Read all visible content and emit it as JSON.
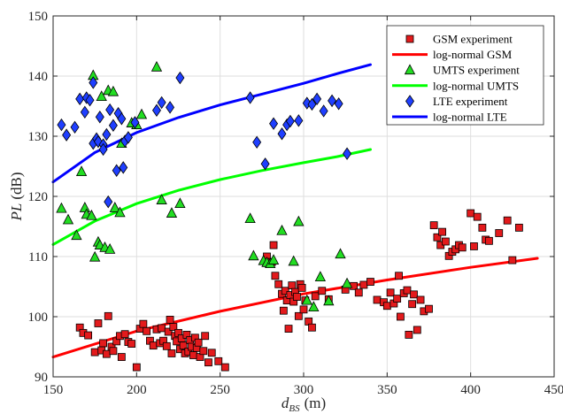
{
  "chart_data": {
    "type": "scatter",
    "title": "",
    "xlabel": {
      "main": "d",
      "sub": "BS",
      "unit": "(m)"
    },
    "ylabel": {
      "main": "PL",
      "unit": "(dB)"
    },
    "xlim": [
      150,
      450
    ],
    "ylim": [
      90,
      150
    ],
    "xticks": [
      150,
      200,
      250,
      300,
      350,
      400,
      450
    ],
    "yticks": [
      90,
      100,
      110,
      120,
      130,
      140,
      150
    ],
    "grid": true,
    "legend_position": "top-right",
    "series": [
      {
        "name": "GSM experiment",
        "kind": "scatter",
        "marker": "square",
        "color": "#e31a1c",
        "points": [
          [
            166,
            98.2
          ],
          [
            168,
            97.3
          ],
          [
            171,
            96.9
          ],
          [
            175,
            94.1
          ],
          [
            177,
            98.9
          ],
          [
            179,
            94.4
          ],
          [
            180,
            95.6
          ],
          [
            182,
            93.8
          ],
          [
            183,
            100.1
          ],
          [
            185,
            95.0
          ],
          [
            186,
            94.3
          ],
          [
            188,
            95.9
          ],
          [
            190,
            96.8
          ],
          [
            191,
            93.3
          ],
          [
            193,
            97.1
          ],
          [
            195,
            95.8
          ],
          [
            197,
            95.5
          ],
          [
            200,
            91.6
          ],
          [
            202,
            98.0
          ],
          [
            204,
            98.8
          ],
          [
            206,
            97.6
          ],
          [
            208,
            96.0
          ],
          [
            210,
            95.2
          ],
          [
            212,
            97.9
          ],
          [
            214,
            95.6
          ],
          [
            215,
            98.1
          ],
          [
            216,
            96.0
          ],
          [
            218,
            95.1
          ],
          [
            219,
            97.5
          ],
          [
            220,
            99.5
          ],
          [
            221,
            93.9
          ],
          [
            222,
            98.3
          ],
          [
            223,
            96.8
          ],
          [
            224,
            95.9
          ],
          [
            225,
            97.3
          ],
          [
            226,
            94.6
          ],
          [
            227,
            96.4
          ],
          [
            228,
            95.2
          ],
          [
            229,
            93.9
          ],
          [
            230,
            97.0
          ],
          [
            231,
            94.2
          ],
          [
            232,
            96.1
          ],
          [
            233,
            95.0
          ],
          [
            234,
            93.6
          ],
          [
            235,
            96.5
          ],
          [
            236,
            94.8
          ],
          [
            237,
            95.7
          ],
          [
            238,
            93.3
          ],
          [
            240,
            94.3
          ],
          [
            241,
            96.8
          ],
          [
            243,
            92.4
          ],
          [
            245,
            94.0
          ],
          [
            249,
            92.6
          ],
          [
            253,
            91.6
          ],
          [
            278,
            110.0
          ],
          [
            281,
            109.1
          ],
          [
            282,
            111.9
          ],
          [
            283,
            106.8
          ],
          [
            285,
            105.4
          ],
          [
            287,
            103.8
          ],
          [
            288,
            101.0
          ],
          [
            289,
            104.3
          ],
          [
            290,
            102.7
          ],
          [
            291,
            98.0
          ],
          [
            292,
            103.6
          ],
          [
            293,
            105.2
          ],
          [
            294,
            102.5
          ],
          [
            295,
            104.1
          ],
          [
            296,
            103.3
          ],
          [
            297,
            100.1
          ],
          [
            298,
            105.4
          ],
          [
            299,
            104.8
          ],
          [
            300,
            101.2
          ],
          [
            301,
            102.7
          ],
          [
            303,
            99.2
          ],
          [
            305,
            98.2
          ],
          [
            307,
            103.4
          ],
          [
            311,
            104.3
          ],
          [
            315,
            102.9
          ],
          [
            325,
            104.5
          ],
          [
            330,
            105.1
          ],
          [
            333,
            104.0
          ],
          [
            336,
            105.3
          ],
          [
            340,
            105.8
          ],
          [
            344,
            102.8
          ],
          [
            348,
            102.4
          ],
          [
            350,
            101.8
          ],
          [
            352,
            104.0
          ],
          [
            354,
            102.2
          ],
          [
            356,
            103.0
          ],
          [
            357,
            106.8
          ],
          [
            358,
            100.0
          ],
          [
            360,
            103.9
          ],
          [
            362,
            104.4
          ],
          [
            363,
            97.0
          ],
          [
            365,
            102.1
          ],
          [
            366,
            103.7
          ],
          [
            368,
            97.8
          ],
          [
            370,
            102.8
          ],
          [
            372,
            100.9
          ],
          [
            375,
            101.3
          ],
          [
            378,
            115.2
          ],
          [
            380,
            113.2
          ],
          [
            382,
            111.9
          ],
          [
            383,
            114.1
          ],
          [
            385,
            112.5
          ],
          [
            387,
            110.1
          ],
          [
            389,
            110.8
          ],
          [
            391,
            111.2
          ],
          [
            393,
            111.9
          ],
          [
            395,
            111.5
          ],
          [
            400,
            117.2
          ],
          [
            402,
            111.7
          ],
          [
            404,
            116.6
          ],
          [
            407,
            114.8
          ],
          [
            409,
            112.8
          ],
          [
            411,
            112.6
          ],
          [
            417,
            113.9
          ],
          [
            422,
            116.0
          ],
          [
            425,
            109.4
          ],
          [
            429,
            114.8
          ]
        ]
      },
      {
        "name": "log-normal GSM",
        "kind": "line",
        "color": "#ff0000",
        "points": [
          [
            150,
            93.3
          ],
          [
            200,
            97.6
          ],
          [
            250,
            100.9
          ],
          [
            300,
            103.8
          ],
          [
            350,
            106.1
          ],
          [
            400,
            108.2
          ],
          [
            440,
            109.7
          ]
        ]
      },
      {
        "name": "UMTS experiment",
        "kind": "scatter",
        "marker": "triangle",
        "color": "#22dd22",
        "points": [
          [
            155,
            118.0
          ],
          [
            159,
            116.1
          ],
          [
            164,
            113.5
          ],
          [
            167,
            124.1
          ],
          [
            169,
            118.1
          ],
          [
            170,
            117.0
          ],
          [
            173,
            116.8
          ],
          [
            174,
            140.1
          ],
          [
            175,
            109.9
          ],
          [
            177,
            112.4
          ],
          [
            178,
            111.9
          ],
          [
            179,
            136.6
          ],
          [
            181,
            111.5
          ],
          [
            183,
            137.6
          ],
          [
            184,
            111.2
          ],
          [
            186,
            137.4
          ],
          [
            187,
            118.1
          ],
          [
            190,
            117.3
          ],
          [
            191,
            128.8
          ],
          [
            197,
            132.2
          ],
          [
            200,
            131.9
          ],
          [
            203,
            133.6
          ],
          [
            212,
            141.5
          ],
          [
            215,
            119.4
          ],
          [
            221,
            117.2
          ],
          [
            226,
            118.8
          ],
          [
            268,
            116.3
          ],
          [
            270,
            110.1
          ],
          [
            276,
            109.3
          ],
          [
            278,
            109.0
          ],
          [
            280,
            108.8
          ],
          [
            282,
            109.4
          ],
          [
            287,
            114.3
          ],
          [
            294,
            109.2
          ],
          [
            297,
            115.8
          ],
          [
            302,
            102.7
          ],
          [
            306,
            101.6
          ],
          [
            310,
            106.6
          ],
          [
            315,
            102.6
          ],
          [
            322,
            110.4
          ],
          [
            326,
            105.5
          ]
        ]
      },
      {
        "name": "log-normal UMTS",
        "kind": "line",
        "color": "#00ff00",
        "points": [
          [
            150,
            112.0
          ],
          [
            175,
            115.9
          ],
          [
            200,
            118.8
          ],
          [
            225,
            121.0
          ],
          [
            250,
            122.8
          ],
          [
            275,
            124.3
          ],
          [
            300,
            125.6
          ],
          [
            320,
            126.6
          ],
          [
            340,
            127.8
          ]
        ]
      },
      {
        "name": "LTE experiment",
        "kind": "scatter",
        "marker": "diamond",
        "color": "#1f3fff",
        "points": [
          [
            155,
            131.9
          ],
          [
            158,
            130.2
          ],
          [
            163,
            131.5
          ],
          [
            166,
            136.2
          ],
          [
            169,
            134.0
          ],
          [
            170,
            136.4
          ],
          [
            172,
            136.0
          ],
          [
            174,
            138.9
          ],
          [
            174,
            128.8
          ],
          [
            176,
            129.6
          ],
          [
            177,
            129.1
          ],
          [
            178,
            133.2
          ],
          [
            180,
            128.6
          ],
          [
            180,
            127.8
          ],
          [
            182,
            130.3
          ],
          [
            183,
            119.1
          ],
          [
            184,
            134.4
          ],
          [
            186,
            131.8
          ],
          [
            188,
            124.3
          ],
          [
            189,
            133.8
          ],
          [
            191,
            132.9
          ],
          [
            192,
            124.8
          ],
          [
            193,
            129.2
          ],
          [
            195,
            129.8
          ],
          [
            199,
            132.3
          ],
          [
            212,
            134.3
          ],
          [
            215,
            135.6
          ],
          [
            220,
            134.8
          ],
          [
            226,
            139.7
          ],
          [
            268,
            136.4
          ],
          [
            272,
            129.0
          ],
          [
            277,
            125.4
          ],
          [
            282,
            132.1
          ],
          [
            287,
            130.4
          ],
          [
            290,
            131.9
          ],
          [
            292,
            132.5
          ],
          [
            297,
            132.6
          ],
          [
            302,
            135.5
          ],
          [
            305,
            135.3
          ],
          [
            308,
            136.2
          ],
          [
            312,
            134.2
          ],
          [
            317,
            135.9
          ],
          [
            321,
            135.4
          ],
          [
            326,
            127.1
          ]
        ]
      },
      {
        "name": "log-normal LTE",
        "kind": "line",
        "color": "#0000ff",
        "points": [
          [
            150,
            122.4
          ],
          [
            175,
            127.3
          ],
          [
            200,
            130.6
          ],
          [
            225,
            133.1
          ],
          [
            250,
            135.2
          ],
          [
            275,
            137.0
          ],
          [
            300,
            138.8
          ],
          [
            320,
            140.4
          ],
          [
            340,
            141.9
          ]
        ]
      }
    ]
  }
}
